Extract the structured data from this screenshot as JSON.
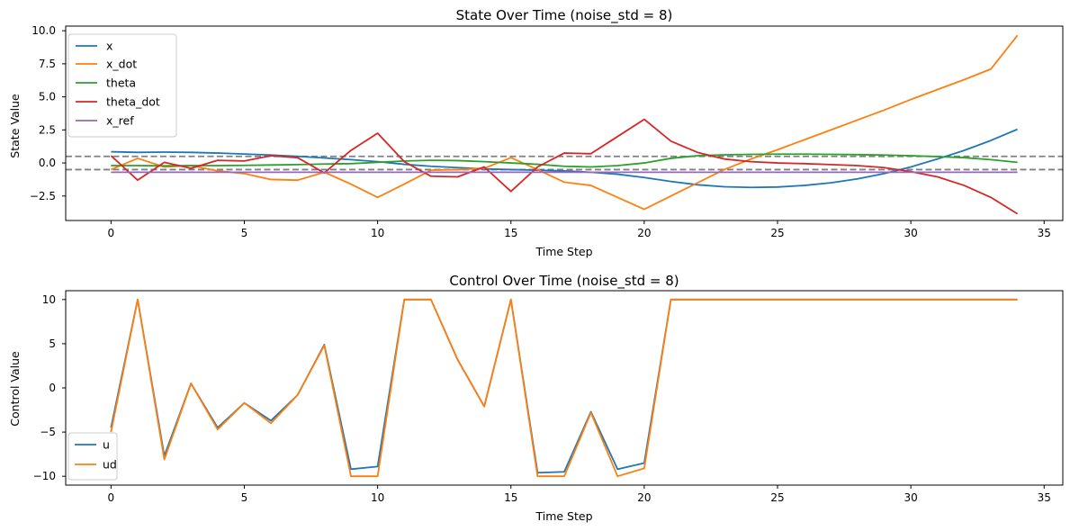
{
  "chart_data": [
    {
      "type": "line",
      "title": "State Over Time (noise_std = 8)",
      "xlabel": "Time Step",
      "ylabel": "State Value",
      "xlim": [
        -1.7,
        35.7
      ],
      "ylim": [
        -4.35,
        10.35
      ],
      "xticks": [
        0,
        5,
        10,
        15,
        20,
        25,
        30,
        35
      ],
      "xtick_labels": [
        "0",
        "5",
        "10",
        "15",
        "20",
        "25",
        "30",
        "35"
      ],
      "yticks": [
        -2.5,
        0.0,
        2.5,
        5.0,
        7.5,
        10.0
      ],
      "ytick_labels": [
        "−2.5",
        "0.0",
        "2.5",
        "5.0",
        "7.5",
        "10.0"
      ],
      "grid": false,
      "legend": "upper-left",
      "x": [
        0,
        1,
        2,
        3,
        4,
        5,
        6,
        7,
        8,
        9,
        10,
        11,
        12,
        13,
        14,
        15,
        16,
        17,
        18,
        19,
        20,
        21,
        22,
        23,
        24,
        25,
        26,
        27,
        28,
        29,
        30,
        31,
        32,
        33,
        34
      ],
      "hlines": [
        {
          "y": 0.5,
          "style": "dashed",
          "color": "#808080"
        },
        {
          "y": -0.5,
          "style": "dashed",
          "color": "#808080"
        }
      ],
      "series": [
        {
          "name": "x",
          "color": "#1f77b4",
          "values": [
            0.85,
            0.8,
            0.82,
            0.8,
            0.75,
            0.68,
            0.6,
            0.5,
            0.38,
            0.25,
            0.1,
            -0.1,
            -0.25,
            -0.35,
            -0.45,
            -0.5,
            -0.55,
            -0.6,
            -0.7,
            -0.85,
            -1.1,
            -1.4,
            -1.65,
            -1.8,
            -1.85,
            -1.82,
            -1.7,
            -1.5,
            -1.2,
            -0.8,
            -0.3,
            0.3,
            0.95,
            1.7,
            2.55
          ]
        },
        {
          "name": "x_dot",
          "color": "#ff7f0e",
          "values": [
            -0.5,
            0.35,
            -0.3,
            -0.2,
            -0.6,
            -0.8,
            -1.25,
            -1.3,
            -0.7,
            -1.6,
            -2.6,
            -1.6,
            -0.55,
            -0.5,
            -0.4,
            0.4,
            -0.5,
            -1.45,
            -1.7,
            -2.6,
            -3.5,
            -2.5,
            -1.5,
            -0.5,
            0.3,
            1.0,
            1.75,
            2.5,
            3.25,
            4.0,
            4.8,
            5.55,
            6.3,
            7.1,
            9.65
          ]
        },
        {
          "name": "theta",
          "color": "#2ca02c",
          "values": [
            -0.2,
            -0.2,
            -0.22,
            -0.2,
            -0.2,
            -0.18,
            -0.15,
            -0.12,
            -0.08,
            -0.05,
            0.05,
            0.15,
            0.2,
            0.18,
            0.1,
            0.0,
            -0.1,
            -0.25,
            -0.3,
            -0.2,
            0.0,
            0.35,
            0.55,
            0.62,
            0.65,
            0.67,
            0.67,
            0.65,
            0.63,
            0.6,
            0.55,
            0.48,
            0.4,
            0.25,
            0.05
          ]
        },
        {
          "name": "theta_dot",
          "color": "#d62728",
          "values": [
            0.55,
            -1.3,
            0.05,
            -0.4,
            0.2,
            0.15,
            0.55,
            0.4,
            -0.75,
            0.95,
            2.25,
            0.1,
            -1.0,
            -1.05,
            -0.3,
            -2.15,
            -0.3,
            0.75,
            0.7,
            2.0,
            3.3,
            1.65,
            0.8,
            0.3,
            0.1,
            0.0,
            -0.05,
            -0.12,
            -0.2,
            -0.35,
            -0.65,
            -1.05,
            -1.7,
            -2.6,
            -3.85
          ]
        },
        {
          "name": "x_ref",
          "color": "#9467bd",
          "values": [
            -0.7,
            -0.7,
            -0.7,
            -0.7,
            -0.7,
            -0.7,
            -0.7,
            -0.7,
            -0.7,
            -0.7,
            -0.7,
            -0.7,
            -0.7,
            -0.7,
            -0.7,
            -0.7,
            -0.7,
            -0.7,
            -0.7,
            -0.7,
            -0.7,
            -0.7,
            -0.7,
            -0.7,
            -0.7,
            -0.7,
            -0.7,
            -0.7,
            -0.7,
            -0.7,
            -0.7,
            -0.7,
            -0.7,
            -0.7,
            -0.7
          ]
        }
      ]
    },
    {
      "type": "line",
      "title": "Control Over Time (noise_std = 8)",
      "xlabel": "Time Step",
      "ylabel": "Control Value",
      "xlim": [
        -1.7,
        35.7
      ],
      "ylim": [
        -11.0,
        11.0
      ],
      "xticks": [
        0,
        5,
        10,
        15,
        20,
        25,
        30,
        35
      ],
      "xtick_labels": [
        "0",
        "5",
        "10",
        "15",
        "20",
        "25",
        "30",
        "35"
      ],
      "yticks": [
        -10,
        -5,
        0,
        5,
        10
      ],
      "ytick_labels": [
        "−10",
        "−5",
        "0",
        "5",
        "10"
      ],
      "grid": false,
      "legend": "lower-left",
      "x": [
        0,
        1,
        2,
        3,
        4,
        5,
        6,
        7,
        8,
        9,
        10,
        11,
        12,
        13,
        14,
        15,
        16,
        17,
        18,
        19,
        20,
        21,
        22,
        23,
        24,
        25,
        26,
        27,
        28,
        29,
        30,
        31,
        32,
        33,
        34
      ],
      "series": [
        {
          "name": "u",
          "color": "#1f77b4",
          "values": [
            -4.5,
            10,
            -7.7,
            0.5,
            -4.5,
            -1.7,
            -3.7,
            -0.8,
            4.9,
            -9.2,
            -8.9,
            10,
            10,
            3.2,
            -2.1,
            10,
            -9.6,
            -9.5,
            -2.7,
            -9.2,
            -8.5,
            10,
            10,
            10,
            10,
            10,
            10,
            10,
            10,
            10,
            10,
            10,
            10,
            10,
            10
          ]
        },
        {
          "name": "ud",
          "color": "#ff7f0e",
          "values": [
            -5.0,
            10,
            -8.1,
            0.5,
            -4.7,
            -1.7,
            -4.0,
            -0.8,
            4.8,
            -10,
            -10,
            10,
            10,
            3.2,
            -2.1,
            10,
            -10,
            -10,
            -2.8,
            -10,
            -9.1,
            10,
            10,
            10,
            10,
            10,
            10,
            10,
            10,
            10,
            10,
            10,
            10,
            10,
            10
          ]
        }
      ]
    }
  ]
}
